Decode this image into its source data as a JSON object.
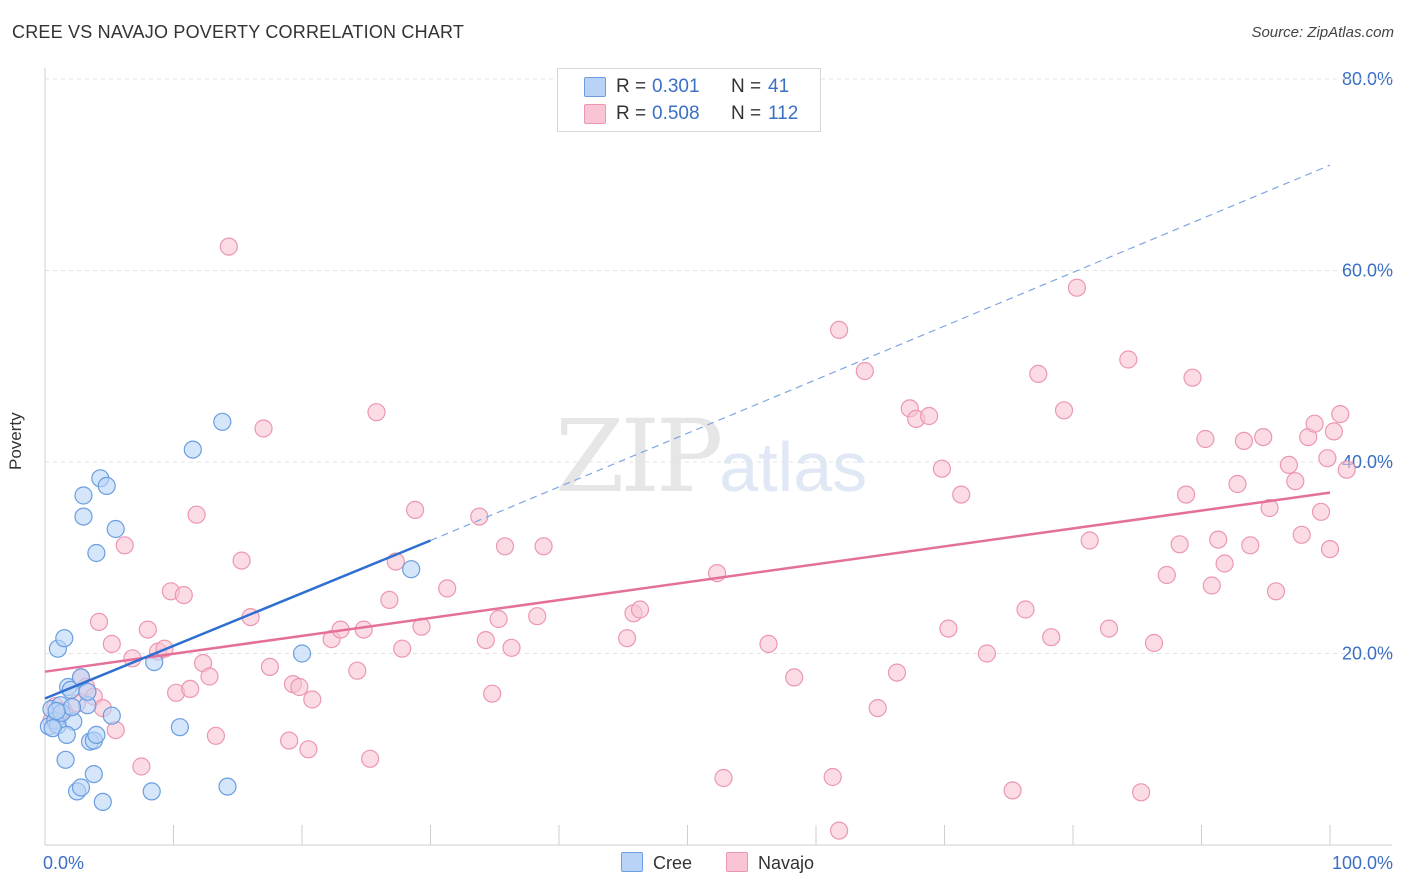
{
  "header": {
    "title": "CREE VS NAVAJO POVERTY CORRELATION CHART",
    "source": "Source: ZipAtlas.com"
  },
  "watermark": {
    "zip": "ZIP",
    "atlas": "atlas"
  },
  "legend": {
    "rows": [
      {
        "r_label": "R =",
        "r_value": "0.301",
        "n_label": "N =",
        "n_value": "41",
        "color": "#b9d3f7"
      },
      {
        "r_label": "R =",
        "r_value": "0.508",
        "n_label": "N =",
        "n_value": "112",
        "color": "#f9c4d3"
      }
    ]
  },
  "bottom_legend": {
    "cree": "Cree",
    "navajo": "Navajo"
  },
  "colors": {
    "cree_fill": "#b9d3f7",
    "cree_stroke": "#6a9ee0",
    "cree_line": "#2f6fd0",
    "navajo_fill": "#f9c4d3",
    "navajo_stroke": "#ec97b1",
    "navajo_line": "#e4709a",
    "accent_text": "#3a6fc4"
  },
  "chart_data": {
    "type": "scatter",
    "title": "CREE VS NAVAJO POVERTY CORRELATION CHART",
    "xlabel": "",
    "ylabel": "Poverty",
    "xlim": [
      0,
      100
    ],
    "ylim": [
      0,
      82
    ],
    "x_tick_labels": [
      "0.0%",
      "100.0%"
    ],
    "y_ticks": [
      20,
      40,
      60,
      80
    ],
    "y_tick_labels": [
      "20.0%",
      "40.0%",
      "60.0%",
      "80.0%"
    ],
    "grid": true,
    "series": [
      {
        "name": "Cree",
        "r": 0.301,
        "n": 41,
        "trend": {
          "x0": 0,
          "y0": 15.3,
          "x1": 30,
          "y1": 31.8,
          "dash_to_x": 100,
          "dash_to_y": 71.0
        },
        "points": [
          [
            0.3,
            12.4
          ],
          [
            0.5,
            14.2
          ],
          [
            0.8,
            13.0
          ],
          [
            1.0,
            12.5
          ],
          [
            1.2,
            14.6
          ],
          [
            1.0,
            20.5
          ],
          [
            1.5,
            21.6
          ],
          [
            1.8,
            16.5
          ],
          [
            2.0,
            16.2
          ],
          [
            2.2,
            12.9
          ],
          [
            2.5,
            5.6
          ],
          [
            2.8,
            6.0
          ],
          [
            2.8,
            17.5
          ],
          [
            3.0,
            36.5
          ],
          [
            3.0,
            34.3
          ],
          [
            3.3,
            14.6
          ],
          [
            3.5,
            10.8
          ],
          [
            3.8,
            10.9
          ],
          [
            3.8,
            7.4
          ],
          [
            4.0,
            11.5
          ],
          [
            4.0,
            30.5
          ],
          [
            4.3,
            38.3
          ],
          [
            4.5,
            4.5
          ],
          [
            4.8,
            37.5
          ],
          [
            5.2,
            13.5
          ],
          [
            5.5,
            33.0
          ],
          [
            8.3,
            5.6
          ],
          [
            8.5,
            19.1
          ],
          [
            10.5,
            12.3
          ],
          [
            11.5,
            41.3
          ],
          [
            13.8,
            44.2
          ],
          [
            14.2,
            6.1
          ],
          [
            20.0,
            20.0
          ],
          [
            28.5,
            28.8
          ],
          [
            1.6,
            8.9
          ],
          [
            0.6,
            12.2
          ],
          [
            1.3,
            13.8
          ],
          [
            2.1,
            14.4
          ],
          [
            3.3,
            16.0
          ],
          [
            0.9,
            14.0
          ],
          [
            1.7,
            11.5
          ]
        ]
      },
      {
        "name": "Navajo",
        "r": 0.508,
        "n": 112,
        "trend": {
          "x0": 0,
          "y0": 18.1,
          "x1": 100,
          "y1": 36.8
        },
        "points": [
          [
            0.5,
            13.0
          ],
          [
            0.8,
            14.5
          ],
          [
            1.0,
            13.5
          ],
          [
            1.5,
            14.0
          ],
          [
            2.5,
            14.8
          ],
          [
            2.8,
            17.5
          ],
          [
            3.2,
            16.5
          ],
          [
            3.8,
            15.5
          ],
          [
            4.2,
            23.3
          ],
          [
            4.5,
            14.3
          ],
          [
            5.2,
            21.0
          ],
          [
            5.5,
            12.0
          ],
          [
            6.2,
            31.3
          ],
          [
            6.8,
            19.5
          ],
          [
            7.5,
            8.2
          ],
          [
            8.0,
            22.5
          ],
          [
            8.8,
            20.2
          ],
          [
            9.3,
            20.5
          ],
          [
            9.8,
            26.5
          ],
          [
            10.2,
            15.9
          ],
          [
            10.8,
            26.1
          ],
          [
            11.3,
            16.3
          ],
          [
            11.8,
            34.5
          ],
          [
            12.3,
            19.0
          ],
          [
            12.8,
            17.6
          ],
          [
            13.3,
            11.4
          ],
          [
            14.3,
            62.5
          ],
          [
            15.3,
            29.7
          ],
          [
            16.0,
            23.8
          ],
          [
            17.0,
            43.5
          ],
          [
            17.5,
            18.6
          ],
          [
            19.0,
            10.9
          ],
          [
            19.3,
            16.8
          ],
          [
            19.8,
            16.5
          ],
          [
            20.5,
            10.0
          ],
          [
            20.8,
            15.2
          ],
          [
            22.3,
            21.5
          ],
          [
            23.0,
            22.5
          ],
          [
            24.3,
            18.2
          ],
          [
            24.8,
            22.5
          ],
          [
            25.3,
            9.0
          ],
          [
            25.8,
            45.2
          ],
          [
            26.8,
            25.6
          ],
          [
            27.3,
            29.6
          ],
          [
            27.8,
            20.5
          ],
          [
            28.8,
            35.0
          ],
          [
            29.3,
            22.8
          ],
          [
            31.3,
            26.8
          ],
          [
            33.8,
            34.3
          ],
          [
            34.3,
            21.4
          ],
          [
            34.8,
            15.8
          ],
          [
            35.3,
            23.6
          ],
          [
            35.8,
            31.2
          ],
          [
            36.3,
            20.6
          ],
          [
            38.3,
            23.9
          ],
          [
            38.8,
            31.2
          ],
          [
            45.3,
            21.6
          ],
          [
            45.8,
            24.2
          ],
          [
            46.3,
            24.6
          ],
          [
            52.3,
            28.4
          ],
          [
            52.8,
            7.0
          ],
          [
            56.3,
            21.0
          ],
          [
            58.3,
            17.5
          ],
          [
            61.3,
            7.1
          ],
          [
            61.8,
            1.5
          ],
          [
            61.8,
            53.8
          ],
          [
            63.8,
            49.5
          ],
          [
            64.8,
            14.3
          ],
          [
            66.3,
            18.0
          ],
          [
            67.3,
            45.6
          ],
          [
            67.8,
            44.5
          ],
          [
            68.8,
            44.8
          ],
          [
            69.8,
            39.3
          ],
          [
            70.3,
            22.6
          ],
          [
            71.3,
            36.6
          ],
          [
            73.3,
            20.0
          ],
          [
            75.3,
            5.7
          ],
          [
            76.3,
            24.6
          ],
          [
            77.3,
            49.2
          ],
          [
            78.3,
            21.7
          ],
          [
            79.3,
            45.4
          ],
          [
            80.3,
            58.2
          ],
          [
            81.3,
            31.8
          ],
          [
            82.8,
            22.6
          ],
          [
            84.3,
            50.7
          ],
          [
            85.3,
            5.5
          ],
          [
            86.3,
            21.1
          ],
          [
            87.3,
            28.2
          ],
          [
            88.3,
            31.4
          ],
          [
            88.8,
            36.6
          ],
          [
            89.3,
            48.8
          ],
          [
            90.3,
            42.4
          ],
          [
            90.8,
            27.1
          ],
          [
            91.3,
            31.9
          ],
          [
            91.8,
            29.4
          ],
          [
            92.8,
            37.7
          ],
          [
            93.3,
            42.2
          ],
          [
            93.8,
            31.3
          ],
          [
            94.8,
            42.6
          ],
          [
            95.3,
            35.2
          ],
          [
            95.8,
            26.5
          ],
          [
            96.8,
            39.7
          ],
          [
            97.3,
            38.0
          ],
          [
            97.8,
            32.4
          ],
          [
            98.3,
            42.6
          ],
          [
            98.8,
            44.0
          ],
          [
            99.3,
            34.8
          ],
          [
            99.8,
            40.4
          ],
          [
            100.3,
            43.2
          ],
          [
            100.8,
            45.0
          ],
          [
            101.3,
            39.2
          ],
          [
            100.0,
            30.9
          ]
        ]
      }
    ]
  }
}
